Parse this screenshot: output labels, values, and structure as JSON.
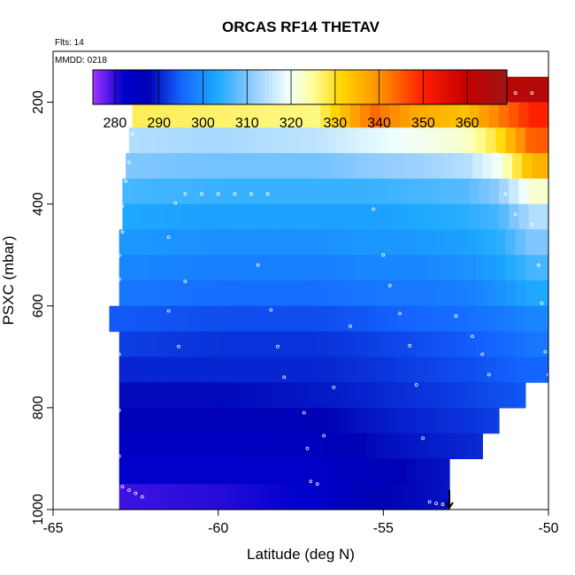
{
  "chart_data": {
    "type": "heatmap",
    "title": "ORCAS RF14 THETAV",
    "flights_label": "Flts: 14",
    "date_label": "MMDD: 0218",
    "xlabel": "Latitude (deg N)",
    "ylabel": "PSXC (mbar)",
    "xlim": [
      -65,
      -50
    ],
    "ylim": [
      1000,
      100
    ],
    "x_ticks": [
      -65,
      -60,
      -55,
      -50
    ],
    "y_ticks": [
      200,
      400,
      600,
      800,
      1000
    ],
    "colorbar": {
      "range": [
        275,
        369
      ],
      "ticks": [
        280,
        290,
        300,
        310,
        320,
        330,
        340,
        350,
        360
      ],
      "placement": "top"
    },
    "pressure_levels": [
      175,
      225,
      275,
      325,
      375,
      425,
      475,
      525,
      575,
      625,
      675,
      725,
      775,
      825,
      875,
      925,
      975
    ],
    "west_edge": [
      -62.3,
      -62.6,
      -62.7,
      -62.8,
      -62.9,
      -62.9,
      -63.0,
      -63.0,
      -63.0,
      -63.3,
      -63.0,
      -63.0,
      -63.0,
      -63.0,
      -63.0,
      -63.0,
      -63.0
    ],
    "east_edge": [
      -50,
      -50,
      -50,
      -50,
      -50,
      -50,
      -50,
      -50,
      -50,
      -50,
      -50,
      -50,
      -50.7,
      -51.5,
      -52.0,
      -53.0,
      -53.0
    ],
    "thetav_profile": [
      {
        "lat": -63,
        "values": [
          358,
          328,
          314,
          310,
          306,
          303,
          301,
          299,
          297,
          294,
          292,
          290,
          288,
          286,
          284,
          282,
          279
        ]
      },
      {
        "lat": -60,
        "values": [
          359,
          327,
          313,
          309,
          305,
          302,
          300,
          298,
          296,
          293,
          291,
          290,
          288,
          286,
          284,
          282,
          280
        ]
      },
      {
        "lat": -57,
        "values": [
          360,
          326,
          315,
          309,
          305,
          302,
          300,
          298,
          296,
          293,
          291,
          290,
          289,
          287,
          285,
          283,
          282
        ]
      },
      {
        "lat": -55.3,
        "values": [
          358,
          344,
          318,
          311,
          305,
          302,
          301,
          299,
          297,
          294,
          292,
          291,
          290,
          289,
          288,
          286,
          287
        ]
      },
      {
        "lat": -54,
        "values": [
          362,
          337,
          320,
          312,
          306,
          303,
          301,
          299,
          297,
          295,
          293,
          292,
          291,
          290,
          289,
          288,
          288
        ]
      },
      {
        "lat": -52.5,
        "values": [
          362,
          334,
          322,
          314,
          307,
          304,
          302,
          300,
          298,
          296,
          294,
          293,
          292,
          291,
          290,
          289,
          289
        ]
      },
      {
        "lat": -51.5,
        "values": [
          363,
          342,
          330,
          320,
          311,
          306,
          304,
          302,
          300,
          297,
          295,
          294,
          293,
          292,
          291,
          290,
          290
        ]
      },
      {
        "lat": -50.5,
        "values": [
          364,
          350,
          345,
          336,
          322,
          314,
          310,
          306,
          303,
          299,
          297,
          295,
          294,
          293,
          292,
          291,
          291
        ]
      }
    ],
    "flight_track_samples": [
      [
        -62.1,
        182
      ],
      [
        -61.5,
        182
      ],
      [
        -61.0,
        182
      ],
      [
        -60.5,
        182
      ],
      [
        -60.0,
        182
      ],
      [
        -59.5,
        182
      ],
      [
        -59.0,
        182
      ],
      [
        -58.5,
        182
      ],
      [
        -58.0,
        182
      ],
      [
        -57.5,
        182
      ],
      [
        -57.0,
        182
      ],
      [
        -56.5,
        182
      ],
      [
        -56.0,
        182
      ],
      [
        -55.5,
        182
      ],
      [
        -52.5,
        182
      ],
      [
        -52.0,
        182
      ],
      [
        -51.5,
        182
      ],
      [
        -51.0,
        182
      ],
      [
        -50.5,
        182
      ],
      [
        -62.6,
        262
      ],
      [
        -62.7,
        318
      ],
      [
        -62.8,
        355
      ],
      [
        -62.9,
        404
      ],
      [
        -62.9,
        455
      ],
      [
        -63.0,
        501
      ],
      [
        -63.0,
        548
      ],
      [
        -63.1,
        595
      ],
      [
        -63.0,
        695
      ],
      [
        -63.0,
        805
      ],
      [
        -63.0,
        895
      ],
      [
        -62.9,
        955
      ],
      [
        -62.7,
        962
      ],
      [
        -62.5,
        968
      ],
      [
        -62.3,
        975
      ],
      [
        -61.2,
        680
      ],
      [
        -61.5,
        610
      ],
      [
        -61.0,
        552
      ],
      [
        -61.5,
        465
      ],
      [
        -61.3,
        398
      ],
      [
        -61.0,
        380
      ],
      [
        -60.5,
        380
      ],
      [
        -60.0,
        380
      ],
      [
        -59.5,
        380
      ],
      [
        -59.0,
        380
      ],
      [
        -58.5,
        380
      ],
      [
        -58.8,
        520
      ],
      [
        -58.4,
        608
      ],
      [
        -58.2,
        680
      ],
      [
        -58.0,
        740
      ],
      [
        -57.4,
        810
      ],
      [
        -57.3,
        880
      ],
      [
        -57.2,
        945
      ],
      [
        -57.0,
        950
      ],
      [
        -56.8,
        855
      ],
      [
        -56.5,
        760
      ],
      [
        -56.0,
        640
      ],
      [
        -55.3,
        410
      ],
      [
        -55.0,
        500
      ],
      [
        -54.8,
        560
      ],
      [
        -54.5,
        615
      ],
      [
        -54.2,
        678
      ],
      [
        -54.0,
        755
      ],
      [
        -53.8,
        860
      ],
      [
        -53.6,
        985
      ],
      [
        -53.4,
        988
      ],
      [
        -53.2,
        990
      ],
      [
        -52.8,
        620
      ],
      [
        -52.3,
        660
      ],
      [
        -52.0,
        695
      ],
      [
        -51.8,
        735
      ],
      [
        -51.6,
        300
      ],
      [
        -51.3,
        380
      ],
      [
        -51.0,
        420
      ],
      [
        -50.5,
        440
      ],
      [
        -50.3,
        520
      ],
      [
        -50.2,
        595
      ],
      [
        -50.1,
        690
      ],
      [
        -50.0,
        735
      ]
    ],
    "marker": {
      "lat": -53.0,
      "symbol": "arrow-down"
    }
  }
}
